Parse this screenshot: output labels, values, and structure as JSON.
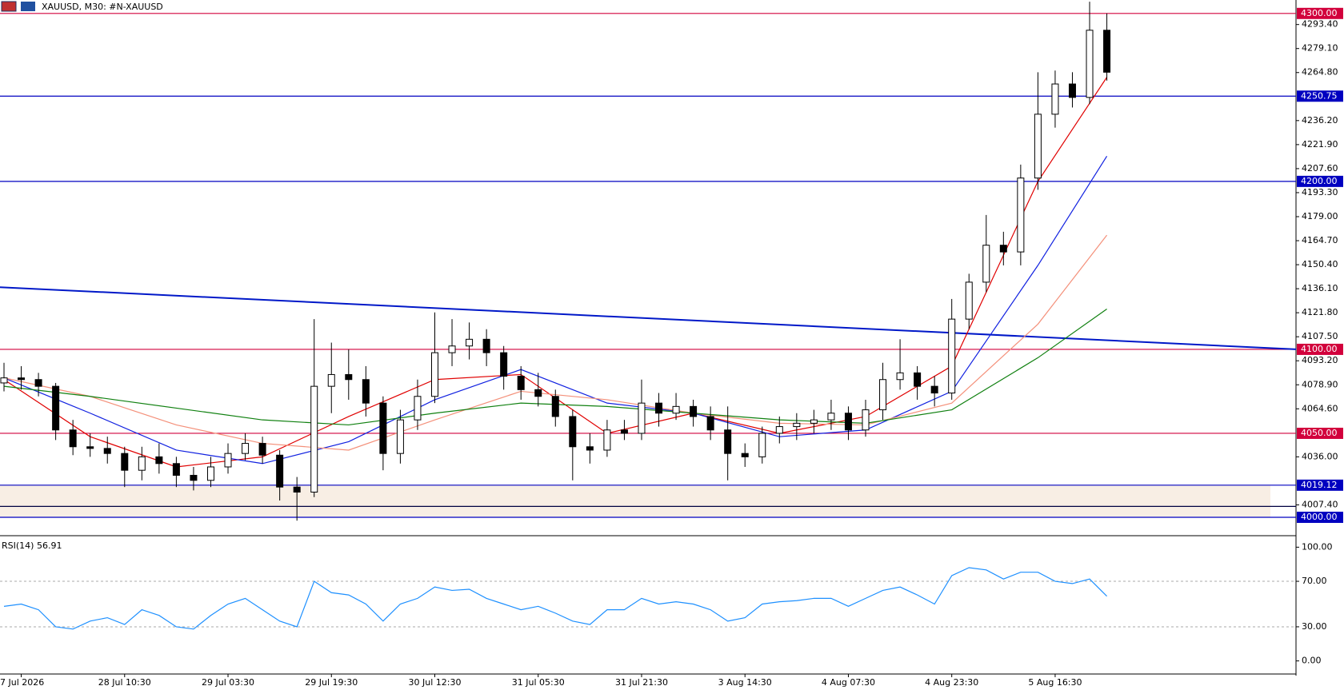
{
  "chart_data": {
    "type": "candlestick",
    "title": "XAUUSD, M30:  #N-XAUUSD",
    "ylim": [
      3990,
      4308
    ],
    "yticks": [
      {
        "value": 4293.4,
        "label": "4293.40"
      },
      {
        "value": 4279.1,
        "label": "4279.10"
      },
      {
        "value": 4264.8,
        "label": "4264.80"
      },
      {
        "value": 4236.2,
        "label": "4236.20"
      },
      {
        "value": 4221.9,
        "label": "4221.90"
      },
      {
        "value": 4207.6,
        "label": "4207.60"
      },
      {
        "value": 4193.3,
        "label": "4193.30"
      },
      {
        "value": 4179,
        "label": "4179.00"
      },
      {
        "value": 4164.7,
        "label": "4164.70"
      },
      {
        "value": 4150.4,
        "label": "4150.40"
      },
      {
        "value": 4136.1,
        "label": "4136.10"
      },
      {
        "value": 4121.8,
        "label": "4121.80"
      },
      {
        "value": 4107.5,
        "label": "4107.50"
      },
      {
        "value": 4093.2,
        "label": "4093.20"
      },
      {
        "value": 4078.9,
        "label": "4078.90"
      },
      {
        "value": 4064.6,
        "label": "4064.60"
      },
      {
        "value": 4036,
        "label": "4036.00"
      },
      {
        "value": 4007.4,
        "label": "4007.40"
      }
    ],
    "levels": [
      {
        "value": 4300,
        "label": "4300.00",
        "color": "#d2003c"
      },
      {
        "value": 4250.75,
        "label": "4250.75",
        "color": "#0000c0"
      },
      {
        "value": 4200,
        "label": "4200.00",
        "color": "#0000c0"
      },
      {
        "value": 4100,
        "label": "4100.00",
        "color": "#d2003c"
      },
      {
        "value": 4050,
        "label": "4050.00",
        "color": "#d2003c"
      },
      {
        "value": 4019.12,
        "label": "4019.12",
        "color": "#0000c0"
      },
      {
        "value": 4006.5,
        "color": "#000040"
      },
      {
        "value": 4000,
        "label": "4000.00",
        "color": "#0000c0"
      }
    ],
    "zone": {
      "range": [
        4000,
        4019.12
      ],
      "color": "#f8eee4"
    },
    "trendline": {
      "values": [
        4137,
        4100
      ],
      "color": "#0018c8"
    },
    "candles": [
      [
        4080,
        4092,
        4075,
        4083
      ],
      [
        4083,
        4090,
        4076,
        4082
      ],
      [
        4082,
        4086,
        4072,
        4078
      ],
      [
        4078,
        4080,
        4046,
        4052
      ],
      [
        4052,
        4058,
        4037,
        4042
      ],
      [
        4042,
        4050,
        4036,
        4041
      ],
      [
        4041,
        4048,
        4032,
        4038
      ],
      [
        4038,
        4042,
        4018,
        4028
      ],
      [
        4028,
        4042,
        4022,
        4036
      ],
      [
        4036,
        4044,
        4026,
        4032
      ],
      [
        4032,
        4036,
        4018,
        4025
      ],
      [
        4025,
        4030,
        4016,
        4022
      ],
      [
        4022,
        4036,
        4018,
        4030
      ],
      [
        4030,
        4044,
        4026,
        4038
      ],
      [
        4038,
        4050,
        4034,
        4044
      ],
      [
        4044,
        4048,
        4032,
        4037
      ],
      [
        4037,
        4040,
        4010,
        4018
      ],
      [
        4018,
        4024,
        3998,
        4015
      ],
      [
        4015,
        4118,
        4012,
        4078
      ],
      [
        4078,
        4104,
        4062,
        4085
      ],
      [
        4085,
        4100,
        4070,
        4082
      ],
      [
        4082,
        4090,
        4060,
        4068
      ],
      [
        4068,
        4072,
        4028,
        4038
      ],
      [
        4038,
        4064,
        4032,
        4058
      ],
      [
        4058,
        4082,
        4052,
        4072
      ],
      [
        4072,
        4122,
        4068,
        4098
      ],
      [
        4098,
        4118,
        4090,
        4102
      ],
      [
        4102,
        4116,
        4094,
        4106
      ],
      [
        4106,
        4112,
        4090,
        4098
      ],
      [
        4098,
        4102,
        4076,
        4084
      ],
      [
        4084,
        4090,
        4070,
        4076
      ],
      [
        4076,
        4086,
        4066,
        4072
      ],
      [
        4072,
        4076,
        4054,
        4060
      ],
      [
        4060,
        4064,
        4022,
        4042
      ],
      [
        4042,
        4050,
        4032,
        4040
      ],
      [
        4040,
        4058,
        4036,
        4052
      ],
      [
        4052,
        4058,
        4046,
        4050
      ],
      [
        4050,
        4082,
        4046,
        4068
      ],
      [
        4068,
        4074,
        4054,
        4062
      ],
      [
        4062,
        4074,
        4058,
        4066
      ],
      [
        4066,
        4070,
        4054,
        4060
      ],
      [
        4060,
        4066,
        4046,
        4052
      ],
      [
        4052,
        4066,
        4022,
        4038
      ],
      [
        4038,
        4044,
        4030,
        4036
      ],
      [
        4036,
        4054,
        4032,
        4050
      ],
      [
        4050,
        4060,
        4044,
        4054
      ],
      [
        4054,
        4062,
        4046,
        4056
      ],
      [
        4056,
        4064,
        4050,
        4058
      ],
      [
        4058,
        4070,
        4052,
        4062
      ],
      [
        4062,
        4066,
        4046,
        4052
      ],
      [
        4052,
        4070,
        4048,
        4064
      ],
      [
        4064,
        4092,
        4058,
        4082
      ],
      [
        4082,
        4106,
        4076,
        4086
      ],
      [
        4086,
        4090,
        4070,
        4078
      ],
      [
        4078,
        4084,
        4066,
        4074
      ],
      [
        4074,
        4130,
        4070,
        4118
      ],
      [
        4118,
        4145,
        4112,
        4140
      ],
      [
        4140,
        4180,
        4134,
        4162
      ],
      [
        4162,
        4170,
        4150,
        4158
      ],
      [
        4158,
        4210,
        4150,
        4202
      ],
      [
        4202,
        4265,
        4195,
        4240
      ],
      [
        4240,
        4266,
        4232,
        4258
      ],
      [
        4258,
        4265,
        4244,
        4250
      ],
      [
        4250,
        4307,
        4246,
        4290
      ],
      [
        4290,
        4300,
        4260,
        4265
      ]
    ],
    "ma_x": [
      0,
      5,
      10,
      15,
      20,
      25,
      30,
      35,
      40,
      45,
      50,
      55,
      60,
      64
    ],
    "moving_averages": [
      {
        "color": "#e00000",
        "values": [
          4082,
          4048,
          4030,
          4036,
          4060,
          4082,
          4085,
          4050,
          4062,
          4050,
          4060,
          4090,
          4200,
          4262
        ]
      },
      {
        "color": "#1020e0",
        "values": [
          4083,
          4062,
          4040,
          4032,
          4045,
          4070,
          4088,
          4068,
          4062,
          4048,
          4052,
          4075,
          4150,
          4215
        ]
      },
      {
        "color": "#f4907a",
        "values": [
          4083,
          4072,
          4055,
          4044,
          4040,
          4058,
          4075,
          4070,
          4062,
          4056,
          4055,
          4068,
          4115,
          4168
        ]
      },
      {
        "color": "#108010",
        "values": [
          4078,
          4072,
          4065,
          4058,
          4055,
          4062,
          4068,
          4066,
          4062,
          4058,
          4056,
          4064,
          4095,
          4124
        ]
      }
    ],
    "x_labels": [
      "7 Jul 2026",
      "28 Jul 10:30",
      "29 Jul 03:30",
      "29 Jul 19:30",
      "30 Jul 12:30",
      "31 Jul 05:30",
      "31 Jul 21:30",
      "3 Aug 14:30",
      "4 Aug 07:30",
      "4 Aug 23:30",
      "5 Aug 16:30"
    ],
    "rsi": {
      "label": "RSI(14) 56.91",
      "ylim": [
        -8,
        108
      ],
      "color": "#1e90ff",
      "yticks": [
        {
          "value": 100,
          "label": "100.00"
        },
        {
          "value": 70,
          "label": "70.00"
        },
        {
          "value": 30,
          "label": "30.00"
        },
        {
          "value": 0,
          "label": "0.00"
        }
      ],
      "levels": [
        70,
        30
      ],
      "values": [
        48,
        50,
        45,
        30,
        28,
        35,
        38,
        32,
        45,
        40,
        30,
        28,
        40,
        50,
        55,
        45,
        35,
        30,
        70,
        60,
        58,
        50,
        35,
        50,
        55,
        65,
        62,
        63,
        55,
        50,
        45,
        48,
        42,
        35,
        32,
        45,
        45,
        55,
        50,
        52,
        50,
        45,
        35,
        38,
        50,
        52,
        53,
        55,
        55,
        48,
        55,
        62,
        65,
        58,
        50,
        75,
        82,
        80,
        72,
        78,
        78,
        70,
        68,
        72,
        56.91
      ]
    }
  }
}
